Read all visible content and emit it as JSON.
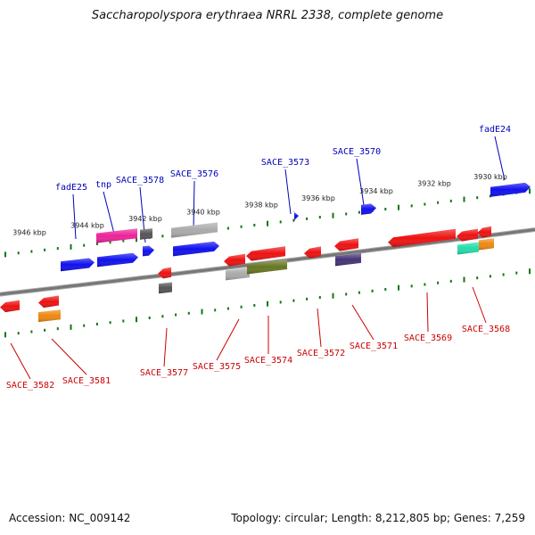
{
  "title": "Saccharopolyspora erythraea NRRL 2338, complete genome",
  "footer": {
    "accession": "Accession: NC_009142",
    "topology": "Topology: circular; Length: 8,212,805 bp; Genes: 7,259"
  },
  "colors": {
    "top_label": "#0000bb",
    "bottom_label": "#cc0000",
    "tick": "#117711",
    "backbone": "#777777"
  },
  "scale_labels": [
    "3946 kbp",
    "3944 kbp",
    "3942 kbp",
    "3940 kbp",
    "3938 kbp",
    "3936 kbp",
    "3934 kbp",
    "3932 kbp",
    "3930 kbp"
  ],
  "top_gene_labels": [
    "fadE25",
    "tnp",
    "SACE_3578",
    "SACE_3576",
    "SACE_3573",
    "SACE_3570",
    "fadE24"
  ],
  "bottom_gene_labels": [
    "SACE_3582",
    "SACE_3581",
    "SACE_3577",
    "SACE_3575",
    "SACE_3574",
    "SACE_3572",
    "SACE_3571",
    "SACE_3569",
    "SACE_3568"
  ],
  "features": {
    "top": [
      {
        "name": "fadE25",
        "color": "#1010ee",
        "dir": "right"
      },
      {
        "name": "tnp-a",
        "color": "#1010ee",
        "dir": "right"
      },
      {
        "name": "tnp",
        "color": "#ee2299",
        "dir": "none"
      },
      {
        "name": "SACE_3578",
        "color": "#555555",
        "dir": "none"
      },
      {
        "name": "SACE_3578-b",
        "color": "#1010ee",
        "dir": "right"
      },
      {
        "name": "SACE_3576",
        "color": "#aaaaaa",
        "dir": "none"
      },
      {
        "name": "SACE_3576-b",
        "color": "#1010ee",
        "dir": "right"
      },
      {
        "name": "SACE_3573",
        "color": "#1010ee",
        "dir": "right"
      },
      {
        "name": "SACE_3570",
        "color": "#1010ee",
        "dir": "right"
      },
      {
        "name": "fadE24",
        "color": "#1010ee",
        "dir": "right"
      }
    ],
    "bottom": [
      {
        "name": "SACE_3582",
        "color": "#ee1111",
        "dir": "left"
      },
      {
        "name": "SACE_3581",
        "color": "#ee1111",
        "dir": "left"
      },
      {
        "name": "SACE_3581-b",
        "color": "#ee8811",
        "dir": "none"
      },
      {
        "name": "SACE_3577",
        "color": "#ee1111",
        "dir": "left"
      },
      {
        "name": "SACE_3577-b",
        "color": "#555555",
        "dir": "none"
      },
      {
        "name": "SACE_3575",
        "color": "#ee1111",
        "dir": "left"
      },
      {
        "name": "SACE_3575-b",
        "color": "#aaaaaa",
        "dir": "none"
      },
      {
        "name": "SACE_3574",
        "color": "#ee1111",
        "dir": "left"
      },
      {
        "name": "SACE_3574-b",
        "color": "#667722",
        "dir": "none"
      },
      {
        "name": "SACE_3572",
        "color": "#ee1111",
        "dir": "left"
      },
      {
        "name": "SACE_3571",
        "color": "#ee1111",
        "dir": "left"
      },
      {
        "name": "SACE_3571-b",
        "color": "#443377",
        "dir": "none"
      },
      {
        "name": "SACE_3569",
        "color": "#ee1111",
        "dir": "left"
      },
      {
        "name": "SACE_3569-b",
        "color": "#ee1111",
        "dir": "left"
      },
      {
        "name": "SACE_3569-c",
        "color": "#22ddaa",
        "dir": "none"
      },
      {
        "name": "SACE_3568",
        "color": "#ee1111",
        "dir": "left"
      },
      {
        "name": "SACE_3568-b",
        "color": "#ee8811",
        "dir": "none"
      }
    ]
  }
}
